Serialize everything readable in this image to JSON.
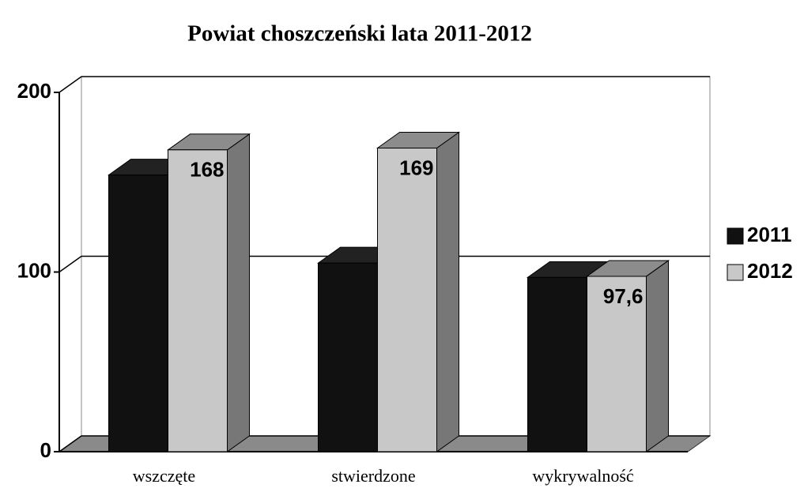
{
  "chart_data": {
    "type": "bar",
    "title": "Powiat choszczeński lata 2011-2012",
    "categories": [
      "wszczęte",
      "stwierdzone",
      "wykrywalność"
    ],
    "series": [
      {
        "name": "2011",
        "color": "#111111",
        "values": [
          154,
          105,
          97
        ]
      },
      {
        "name": "2012",
        "color": "#c8c8c8",
        "values": [
          168,
          169,
          97.6
        ],
        "value_labels": [
          "168",
          "169",
          "97,6"
        ]
      }
    ],
    "ylim": [
      0,
      200
    ],
    "yticks": [
      0,
      100,
      200
    ],
    "grid": true,
    "legend": "right"
  }
}
